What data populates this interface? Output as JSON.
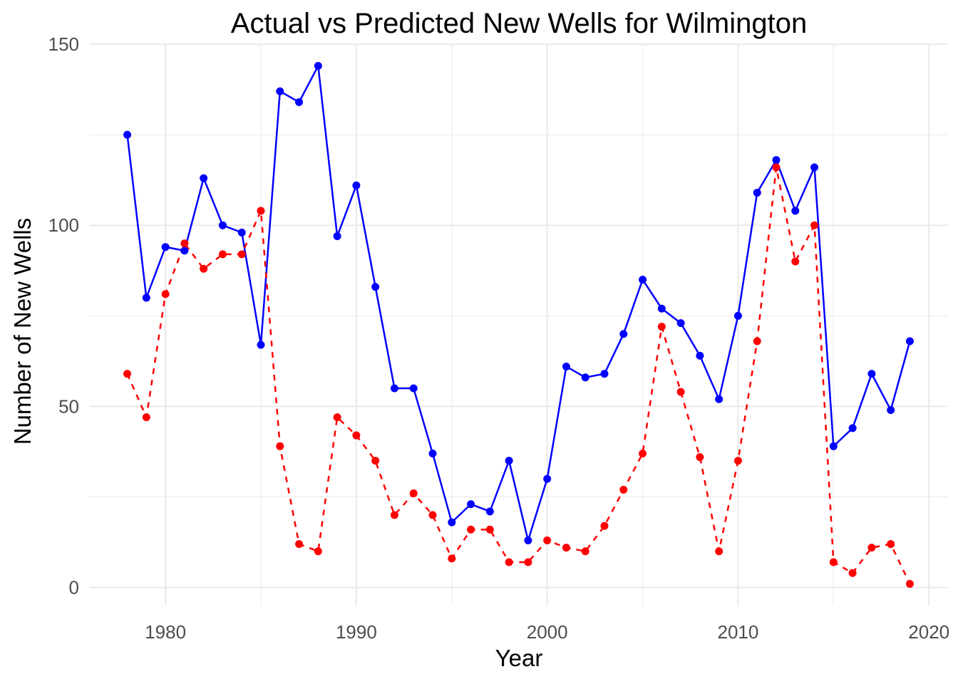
{
  "chart_data": {
    "type": "line",
    "title": "Actual vs Predicted New Wells for Wilmington",
    "xlabel": "Year",
    "ylabel": "Number of New Wells",
    "xlim": [
      1976,
      2021
    ],
    "ylim": [
      -5,
      150
    ],
    "x_ticks": [
      1980,
      1990,
      2000,
      2010,
      2020
    ],
    "y_ticks": [
      0,
      50,
      100,
      150
    ],
    "grid": true,
    "legend": "none",
    "x": [
      1978,
      1979,
      1980,
      1981,
      1982,
      1983,
      1984,
      1985,
      1986,
      1987,
      1988,
      1989,
      1990,
      1991,
      1992,
      1993,
      1994,
      1995,
      1996,
      1997,
      1998,
      1999,
      2000,
      2001,
      2002,
      2003,
      2004,
      2005,
      2006,
      2007,
      2008,
      2009,
      2010,
      2011,
      2012,
      2013,
      2014,
      2015,
      2016,
      2017,
      2018,
      2019
    ],
    "series": [
      {
        "color": "#0000FF",
        "line_style": "solid",
        "values": [
          125,
          80,
          94,
          93,
          113,
          100,
          98,
          67,
          137,
          134,
          144,
          97,
          111,
          83,
          55,
          55,
          37,
          18,
          23,
          21,
          35,
          13,
          30,
          61,
          58,
          59,
          70,
          85,
          77,
          73,
          64,
          52,
          75,
          109,
          118,
          104,
          116,
          39,
          44,
          59,
          49,
          68
        ]
      },
      {
        "color": "#FF0000",
        "line_style": "dashed",
        "values": [
          59,
          47,
          81,
          95,
          88,
          92,
          92,
          104,
          39,
          12,
          10,
          47,
          42,
          35,
          20,
          26,
          20,
          8,
          16,
          16,
          7,
          7,
          13,
          11,
          10,
          17,
          27,
          37,
          72,
          54,
          36,
          10,
          35,
          68,
          116,
          90,
          100,
          7,
          4,
          11,
          12,
          1
        ]
      }
    ]
  }
}
